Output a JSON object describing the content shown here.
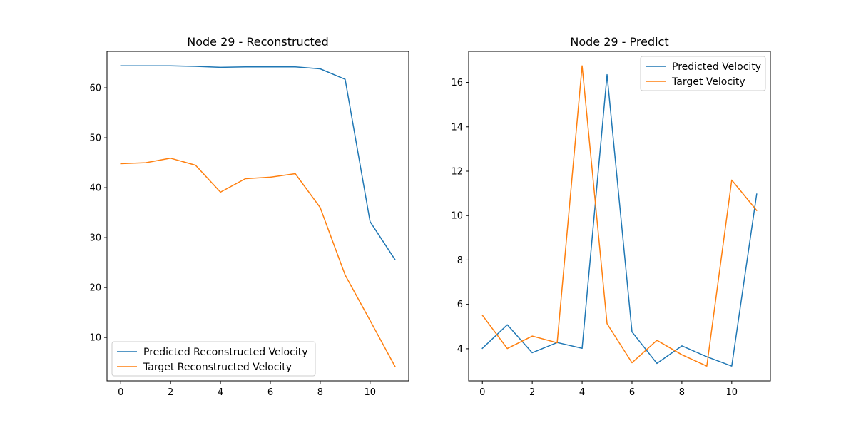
{
  "chart_data": [
    {
      "type": "line",
      "title": "Node 29 - Reconstructed",
      "xlabel": "",
      "ylabel": "",
      "x": [
        0,
        1,
        2,
        3,
        4,
        5,
        6,
        7,
        8,
        9,
        10,
        11
      ],
      "xlim": [
        -0.55,
        11.55
      ],
      "ylim": [
        1.3,
        67.3
      ],
      "xticks": [
        0,
        2,
        4,
        6,
        8,
        10
      ],
      "yticks": [
        10,
        20,
        30,
        40,
        50,
        60
      ],
      "grid": false,
      "legend": "lower-left",
      "series": [
        {
          "name": "Predicted Reconstructed Velocity",
          "color": "#1f77b4",
          "values": [
            64.4,
            64.4,
            64.4,
            64.3,
            64.1,
            64.2,
            64.2,
            64.2,
            63.8,
            61.7,
            33.2,
            25.6
          ]
        },
        {
          "name": "Target Reconstructed Velocity",
          "color": "#ff7f0e",
          "values": [
            44.8,
            45.0,
            45.9,
            44.5,
            39.1,
            41.8,
            42.1,
            42.8,
            36.0,
            22.5,
            13.4,
            4.2
          ]
        }
      ]
    },
    {
      "type": "line",
      "title": "Node 29 - Predict",
      "xlabel": "",
      "ylabel": "",
      "x": [
        0,
        1,
        2,
        3,
        4,
        5,
        6,
        7,
        8,
        9,
        10,
        11
      ],
      "xlim": [
        -0.55,
        11.55
      ],
      "ylim": [
        2.55,
        17.4
      ],
      "xticks": [
        0,
        2,
        4,
        6,
        8,
        10
      ],
      "yticks": [
        4,
        6,
        8,
        10,
        12,
        14,
        16
      ],
      "grid": false,
      "legend": "top-right",
      "series": [
        {
          "name": "Predicted Velocity",
          "color": "#1f77b4",
          "values": [
            4.02,
            5.08,
            3.82,
            4.28,
            4.02,
            16.35,
            4.76,
            3.34,
            4.13,
            3.64,
            3.22,
            10.97
          ]
        },
        {
          "name": "Target Velocity",
          "color": "#ff7f0e",
          "values": [
            5.51,
            4.01,
            4.57,
            4.27,
            16.75,
            5.13,
            3.37,
            4.38,
            3.73,
            3.22,
            11.6,
            10.23
          ]
        }
      ]
    }
  ]
}
